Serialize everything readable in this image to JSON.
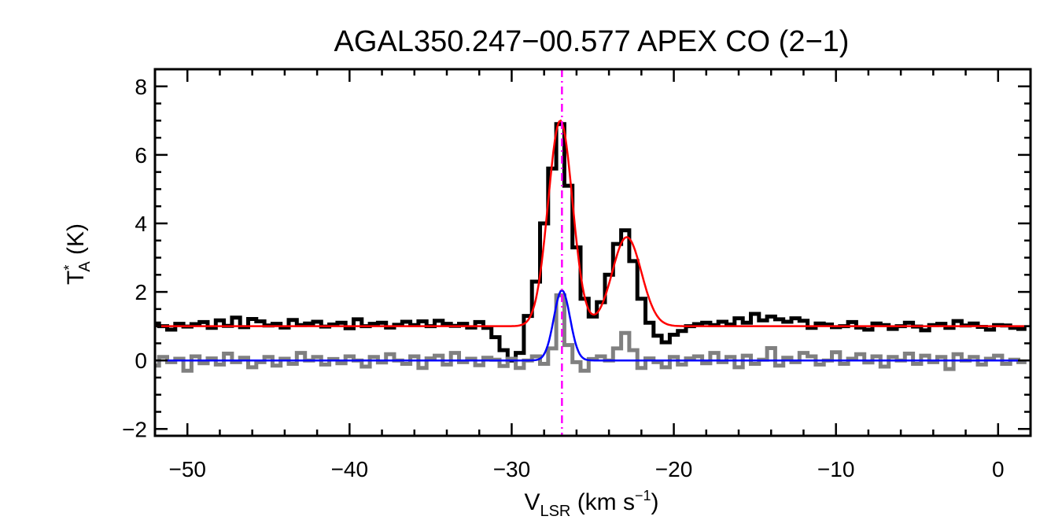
{
  "chart_data": {
    "type": "line",
    "title": "AGAL350.247−00.577  APEX CO (2−1)",
    "xlabel": {
      "main": "V",
      "sub": "LSR",
      "unit_text": " (km s",
      "unit_sup": "−1",
      "close": ")"
    },
    "ylabel": {
      "main": "T",
      "sup": "*",
      "sub": "A",
      "unit_text": " (K)"
    },
    "xlim": [
      -52,
      2
    ],
    "ylim": [
      -2.2,
      8.5
    ],
    "xticks": [
      -50,
      -40,
      -30,
      -20,
      -10,
      0
    ],
    "xtick_labels": [
      "−50",
      "−40",
      "−30",
      "−20",
      "−10",
      "0"
    ],
    "yticks": [
      -2,
      0,
      2,
      4,
      6,
      8
    ],
    "ytick_labels": [
      "−2",
      "0",
      "2",
      "4",
      "6",
      "8"
    ],
    "grid": false,
    "reference_line": {
      "x": -26.9,
      "color": "#ff00ff",
      "style": "dash-dot"
    },
    "series": [
      {
        "kind": "spectrum",
        "color": "#000000",
        "x": [
          -52.0,
          -51.5,
          -51.0,
          -50.5,
          -50.0,
          -49.5,
          -49.0,
          -48.5,
          -48.0,
          -47.5,
          -47.0,
          -46.5,
          -46.0,
          -45.5,
          -45.0,
          -44.5,
          -44.0,
          -43.5,
          -43.0,
          -42.5,
          -42.0,
          -41.5,
          -41.0,
          -40.5,
          -40.0,
          -39.5,
          -39.0,
          -38.5,
          -38.0,
          -37.5,
          -37.0,
          -36.5,
          -36.0,
          -35.5,
          -35.0,
          -34.5,
          -34.0,
          -33.5,
          -33.0,
          -32.5,
          -32.0,
          -31.5,
          -31.0,
          -30.5,
          -30.0,
          -29.5,
          -29.0,
          -28.5,
          -28.0,
          -27.5,
          -27.0,
          -26.5,
          -26.0,
          -25.5,
          -25.0,
          -24.5,
          -24.0,
          -23.5,
          -23.0,
          -22.5,
          -22.0,
          -21.5,
          -21.0,
          -20.5,
          -20.0,
          -19.5,
          -19.0,
          -18.5,
          -18.0,
          -17.5,
          -17.0,
          -16.5,
          -16.0,
          -15.5,
          -15.0,
          -14.5,
          -14.0,
          -13.5,
          -13.0,
          -12.5,
          -12.0,
          -11.5,
          -11.0,
          -10.5,
          -10.0,
          -9.5,
          -9.0,
          -8.5,
          -8.0,
          -7.5,
          -7.0,
          -6.5,
          -6.0,
          -5.5,
          -5.0,
          -4.5,
          -4.0,
          -3.5,
          -3.0,
          -2.5,
          -2.0,
          -1.5,
          -1.0,
          -0.5,
          0.0,
          0.5,
          1.0,
          1.5
        ],
        "y": [
          1.08,
          1.0,
          0.9,
          1.07,
          0.99,
          1.06,
          1.12,
          0.95,
          1.17,
          1.01,
          1.25,
          0.97,
          1.21,
          1.14,
          1.02,
          1.07,
          0.96,
          1.18,
          1.03,
          1.08,
          1.13,
          0.99,
          1.05,
          1.1,
          0.94,
          1.2,
          1.0,
          1.07,
          1.1,
          0.96,
          1.04,
          1.13,
          1.03,
          1.14,
          1.0,
          1.16,
          1.07,
          1.01,
          1.07,
          0.96,
          1.12,
          0.95,
          0.68,
          0.3,
          0.0,
          0.22,
          1.3,
          2.3,
          4.0,
          5.6,
          6.9,
          5.1,
          3.3,
          1.8,
          1.28,
          1.7,
          2.5,
          3.4,
          3.8,
          2.9,
          1.8,
          1.1,
          0.72,
          0.53,
          0.75,
          0.86,
          1.0,
          1.06,
          1.1,
          1.03,
          1.13,
          1.05,
          1.23,
          1.1,
          1.36,
          1.17,
          1.28,
          1.2,
          1.13,
          1.23,
          1.16,
          0.95,
          1.08,
          1.05,
          0.97,
          1.0,
          1.12,
          0.96,
          0.9,
          1.08,
          1.03,
          0.92,
          1.0,
          1.1,
          0.99,
          0.88,
          1.03,
          1.07,
          0.95,
          1.15,
          1.02,
          1.08,
          0.98,
          0.9,
          1.03,
          1.02,
          0.95,
          0.92
        ]
      },
      {
        "kind": "spectrum",
        "color": "#808080",
        "x": [
          -52.0,
          -51.5,
          -51.0,
          -50.5,
          -50.0,
          -49.5,
          -49.0,
          -48.5,
          -48.0,
          -47.5,
          -47.0,
          -46.5,
          -46.0,
          -45.5,
          -45.0,
          -44.5,
          -44.0,
          -43.5,
          -43.0,
          -42.5,
          -42.0,
          -41.5,
          -41.0,
          -40.5,
          -40.0,
          -39.5,
          -39.0,
          -38.5,
          -38.0,
          -37.5,
          -37.0,
          -36.5,
          -36.0,
          -35.5,
          -35.0,
          -34.5,
          -34.0,
          -33.5,
          -33.0,
          -32.5,
          -32.0,
          -31.5,
          -31.0,
          -30.5,
          -30.0,
          -29.5,
          -29.0,
          -28.5,
          -28.0,
          -27.5,
          -27.0,
          -26.5,
          -26.0,
          -25.5,
          -25.0,
          -24.5,
          -24.0,
          -23.5,
          -23.0,
          -22.5,
          -22.0,
          -21.5,
          -21.0,
          -20.5,
          -20.0,
          -19.5,
          -19.0,
          -18.5,
          -18.0,
          -17.5,
          -17.0,
          -16.5,
          -16.0,
          -15.5,
          -15.0,
          -14.5,
          -14.0,
          -13.5,
          -13.0,
          -12.5,
          -12.0,
          -11.5,
          -11.0,
          -10.5,
          -10.0,
          -9.5,
          -9.0,
          -8.5,
          -8.0,
          -7.5,
          -7.0,
          -6.5,
          -6.0,
          -5.5,
          -5.0,
          -4.5,
          -4.0,
          -3.5,
          -3.0,
          -2.5,
          -2.0,
          -1.5,
          -1.0,
          -0.5,
          0.0,
          0.5,
          1.0,
          1.5
        ],
        "y": [
          -0.15,
          0.1,
          -0.05,
          0.05,
          -0.3,
          0.12,
          -0.08,
          0.06,
          -0.12,
          0.2,
          -0.05,
          0.08,
          -0.2,
          -0.05,
          0.1,
          -0.15,
          0.05,
          -0.1,
          0.22,
          0.0,
          0.1,
          -0.12,
          0.04,
          -0.08,
          0.12,
          0.0,
          -0.18,
          0.1,
          -0.06,
          0.18,
          0.0,
          -0.1,
          0.12,
          -0.22,
          0.06,
          0.14,
          -0.12,
          0.22,
          -0.05,
          0.05,
          -0.14,
          0.08,
          0.02,
          -0.16,
          0.05,
          -0.22,
          0.0,
          0.12,
          -0.1,
          0.35,
          1.9,
          0.45,
          -0.05,
          -0.3,
          0.04,
          0.12,
          0.0,
          0.35,
          0.8,
          0.3,
          -0.22,
          0.06,
          -0.05,
          -0.2,
          0.1,
          -0.12,
          0.06,
          0.12,
          -0.08,
          0.22,
          -0.05,
          0.1,
          -0.2,
          0.14,
          -0.1,
          0.02,
          0.36,
          -0.15,
          0.08,
          -0.05,
          0.22,
          0.12,
          -0.12,
          0.0,
          0.24,
          -0.1,
          0.05,
          0.18,
          -0.06,
          0.12,
          -0.18,
          0.1,
          0.0,
          0.2,
          -0.1,
          0.14,
          -0.05,
          0.1,
          -0.25,
          0.18,
          0.0,
          0.1,
          -0.12,
          0.05,
          0.14,
          -0.1,
          0.02,
          -0.05
        ]
      },
      {
        "kind": "fit",
        "color": "#ff0000",
        "baseline": 1.0,
        "components": [
          {
            "amp": 6.0,
            "center": -27.0,
            "sigma": 0.75
          },
          {
            "amp": 2.6,
            "center": -22.9,
            "sigma": 0.9
          }
        ]
      },
      {
        "kind": "fit",
        "color": "#0000ff",
        "baseline": 0.0,
        "components": [
          {
            "amp": 2.05,
            "center": -26.9,
            "sigma": 0.5
          }
        ]
      }
    ]
  }
}
